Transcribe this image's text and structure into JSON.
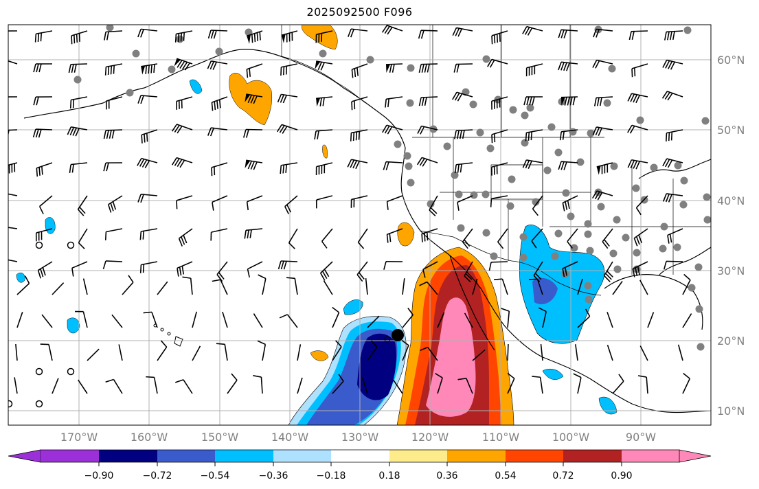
{
  "title": "2025092500 F096",
  "map": {
    "extent": {
      "lon_min": -180,
      "lon_max": -80,
      "lat_min": 8,
      "lat_max": 65
    },
    "gridlines": true,
    "lon_labels": [
      "170°W",
      "160°W",
      "150°W",
      "140°W",
      "130°W",
      "120°W",
      "110°W",
      "100°W",
      "90°W"
    ],
    "lat_labels": [
      "60°N",
      "50°N",
      "40°N",
      "30°N",
      "20°N",
      "10°N"
    ],
    "marker": {
      "lon": -125,
      "lat": 20.7,
      "symbol": "filled-circle"
    }
  },
  "colorbar": {
    "ticks": [
      "−0.90",
      "−0.72",
      "−0.54",
      "−0.36",
      "−0.18",
      "0.18",
      "0.36",
      "0.54",
      "0.72",
      "0.90"
    ],
    "colors": [
      "#9b30d9",
      "#000080",
      "#3a5bcc",
      "#00bfff",
      "#aee1fd",
      "#ffffff",
      "#feeb8a",
      "#ffa500",
      "#ff4500",
      "#b22222",
      "#ff88b8"
    ],
    "extend": "both"
  },
  "colors": {
    "grid": "#b0b0b0",
    "coast": "#000000",
    "marker": "#000000",
    "station": "#808080"
  }
}
